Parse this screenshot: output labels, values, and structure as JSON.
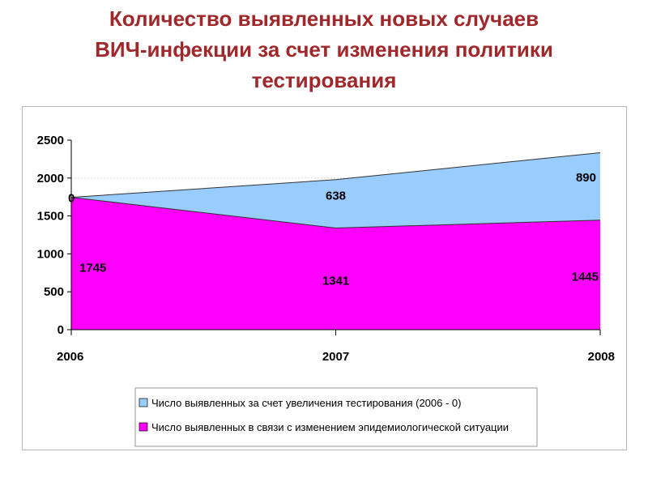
{
  "slide": {
    "title_lines": [
      "Количество выявленных новых случаев",
      "ВИЧ-инфекции за счет изменения политики",
      "тестирования"
    ]
  },
  "colors": {
    "title": "#a0282b",
    "series_top": "#99ccff",
    "series_bottom": "#ff00ff"
  },
  "chart_data": {
    "type": "area",
    "stacked": true,
    "x": [
      "2006",
      "2007",
      "2008"
    ],
    "ylim": [
      0,
      2500
    ],
    "yticks": [
      0,
      500,
      1000,
      1500,
      2000,
      2500
    ],
    "grid": false,
    "legend_position": "bottom",
    "series": [
      {
        "name": "Число выявленных в связи с изменением эпидемиологической ситуации",
        "values": [
          1745,
          1341,
          1445
        ],
        "labels": [
          "1745",
          "1341",
          "1445"
        ],
        "color": "#ff00ff"
      },
      {
        "name": "Число выявленных за счет увеличения тестирования (2006 - 0)",
        "values": [
          0,
          638,
          890
        ],
        "labels": [
          "0",
          "638",
          "890"
        ],
        "color": "#99ccff"
      }
    ]
  }
}
